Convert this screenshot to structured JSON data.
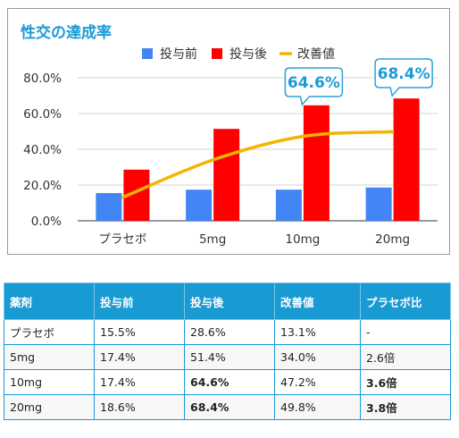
{
  "chart_data": {
    "type": "bar",
    "title": "性交の達成率",
    "categories": [
      "プラセボ",
      "5mg",
      "10mg",
      "20mg"
    ],
    "series": [
      {
        "name": "投与前",
        "kind": "bar",
        "color": "#4285f4",
        "values": [
          15.5,
          17.4,
          17.4,
          18.6
        ]
      },
      {
        "name": "投与後",
        "kind": "bar",
        "color": "#ff0000",
        "values": [
          28.6,
          51.4,
          64.6,
          68.4
        ]
      },
      {
        "name": "改善値",
        "kind": "line",
        "color": "#f4b400",
        "values": [
          13.1,
          34.0,
          47.2,
          49.8
        ]
      }
    ],
    "ylim": [
      0,
      80
    ],
    "yticks": [
      "0.0%",
      "20.0%",
      "40.0%",
      "60.0%",
      "80.0%"
    ],
    "ytick_values": [
      0,
      20,
      40,
      60,
      80
    ],
    "legend_position": "top",
    "grid": true,
    "annotations": [
      {
        "text": "64.6%",
        "category": "10mg",
        "series": "投与後"
      },
      {
        "text": "68.4%",
        "category": "20mg",
        "series": "投与後"
      }
    ]
  },
  "table": {
    "headers": [
      "薬剤",
      "投与前",
      "投与後",
      "改善値",
      "プラセボ比"
    ],
    "rows": [
      [
        "プラセボ",
        "15.5%",
        "28.6%",
        "13.1%",
        "-"
      ],
      [
        "5mg",
        "17.4%",
        "51.4%",
        "34.0%",
        "2.6倍"
      ],
      [
        "10mg",
        "17.4%",
        "64.6%",
        "47.2%",
        "3.6倍"
      ],
      [
        "20mg",
        "18.6%",
        "68.4%",
        "49.8%",
        "3.8倍"
      ]
    ],
    "highlight": [
      [
        2,
        2
      ],
      [
        2,
        4
      ],
      [
        3,
        2
      ],
      [
        3,
        4
      ]
    ]
  },
  "colors": {
    "accent": "#1a9bd7",
    "header_bg": "#189ad3",
    "highlight_text": "#e50012"
  }
}
